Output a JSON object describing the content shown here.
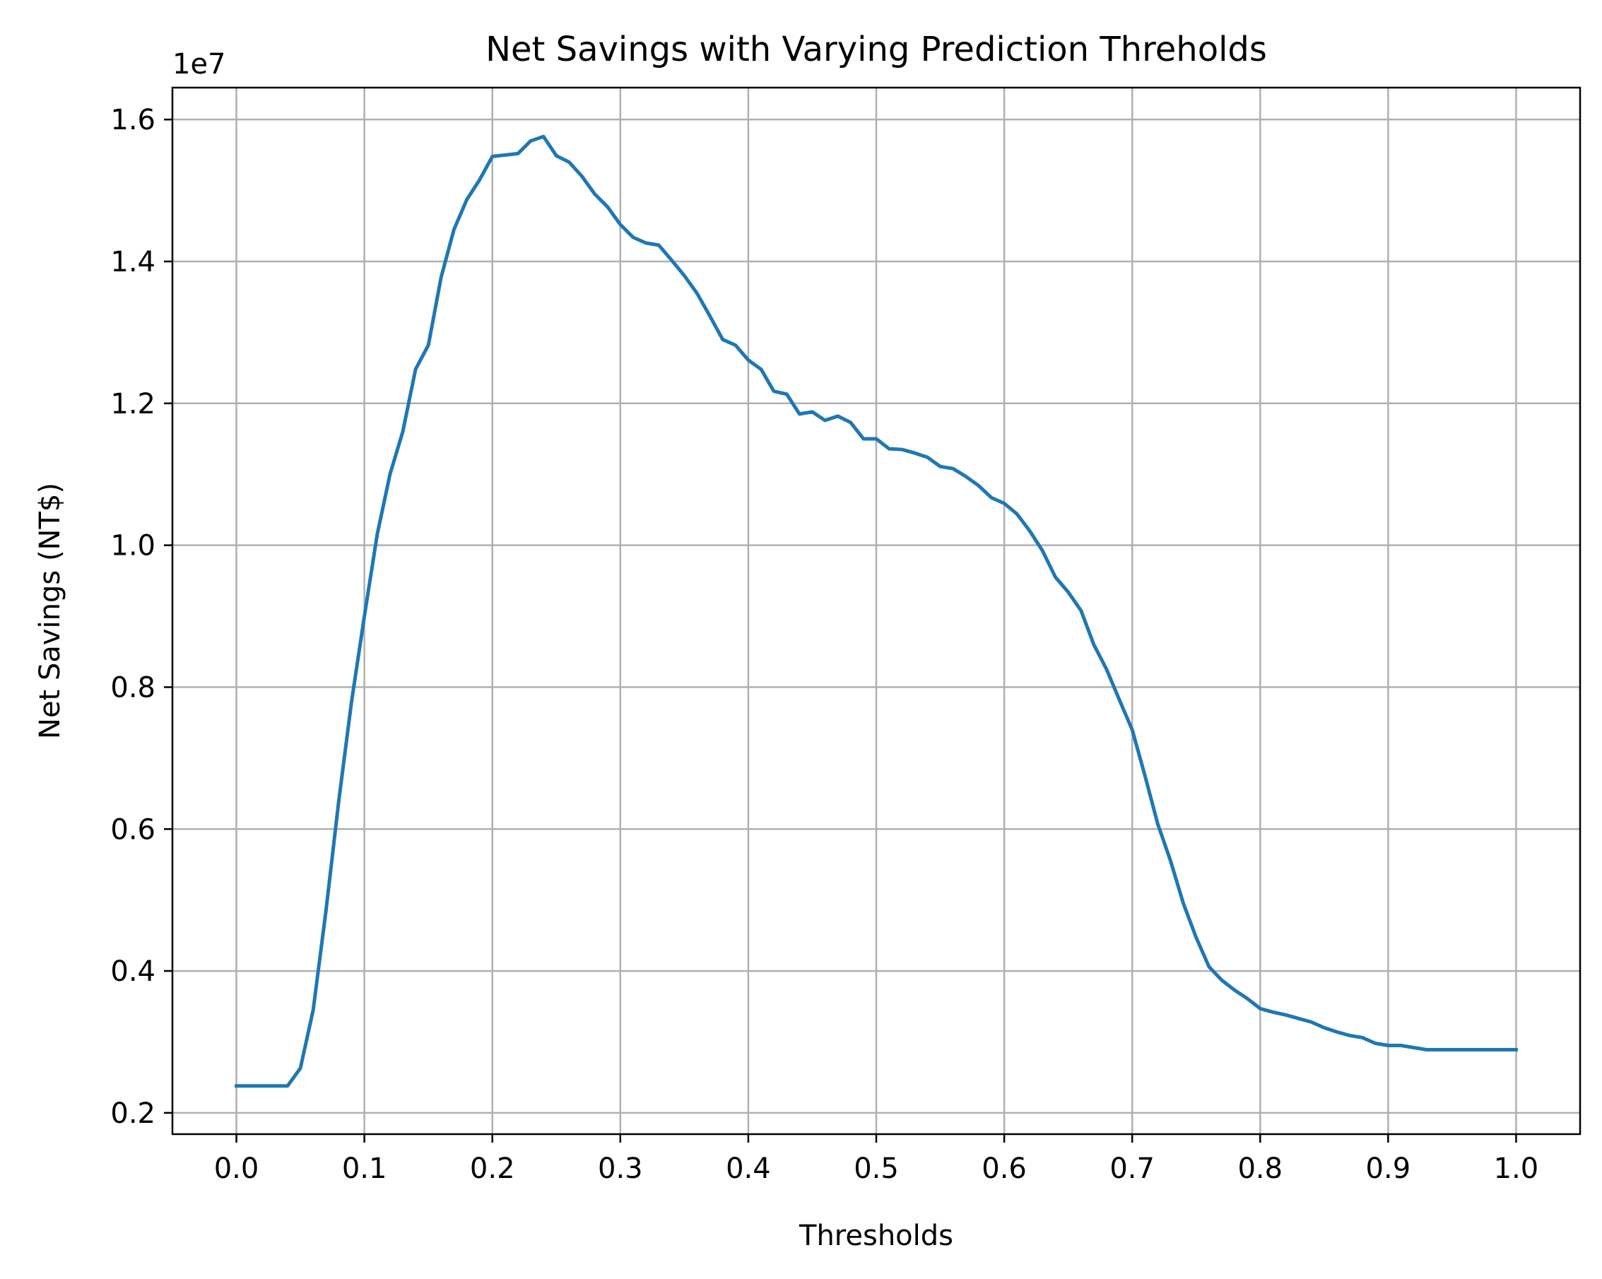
{
  "chart_data": {
    "type": "line",
    "title": "Net Savings with Varying Prediction Threholds",
    "xlabel": "Thresholds",
    "ylabel": "Net Savings (NT$)",
    "y_offset_label": "1e7",
    "xlim": [
      -0.05,
      1.05
    ],
    "ylim": [
      1.7,
      16.45
    ],
    "xticks": [
      0.0,
      0.1,
      0.2,
      0.3,
      0.4,
      0.5,
      0.6,
      0.7,
      0.8,
      0.9,
      1.0
    ],
    "xtick_labels": [
      "0.0",
      "0.1",
      "0.2",
      "0.3",
      "0.4",
      "0.5",
      "0.6",
      "0.7",
      "0.8",
      "0.9",
      "1.0"
    ],
    "yticks": [
      2,
      4,
      6,
      8,
      10,
      12,
      14,
      16
    ],
    "ytick_labels": [
      "0.2",
      "0.4",
      "0.6",
      "0.8",
      "1.0",
      "1.2",
      "1.4",
      "1.6"
    ],
    "grid": true,
    "series_color": "#1f77b4",
    "grid_color": "#b0b0b0",
    "series": [
      {
        "x": [
          0.0,
          0.01,
          0.02,
          0.03,
          0.04,
          0.05,
          0.06,
          0.07,
          0.08,
          0.09,
          0.1,
          0.11,
          0.12,
          0.13,
          0.14,
          0.15,
          0.16,
          0.17,
          0.18,
          0.19,
          0.2,
          0.21,
          0.22,
          0.23,
          0.24,
          0.25,
          0.26,
          0.27,
          0.28,
          0.29,
          0.3,
          0.31,
          0.32,
          0.33,
          0.34,
          0.35,
          0.36,
          0.37,
          0.38,
          0.39,
          0.4,
          0.41,
          0.42,
          0.43,
          0.44,
          0.45,
          0.46,
          0.47,
          0.48,
          0.49,
          0.5,
          0.51,
          0.52,
          0.53,
          0.54,
          0.55,
          0.56,
          0.57,
          0.58,
          0.59,
          0.6,
          0.61,
          0.62,
          0.63,
          0.64,
          0.65,
          0.66,
          0.67,
          0.68,
          0.69,
          0.7,
          0.71,
          0.72,
          0.73,
          0.74,
          0.75,
          0.76,
          0.77,
          0.78,
          0.79,
          0.8,
          0.81,
          0.82,
          0.83,
          0.84,
          0.85,
          0.86,
          0.87,
          0.88,
          0.89,
          0.9,
          0.91,
          0.92,
          0.93,
          0.94,
          0.95,
          0.96,
          0.97,
          0.98,
          0.99,
          1.0
        ],
        "y": [
          2.38,
          2.38,
          2.38,
          2.38,
          2.38,
          2.63,
          3.45,
          4.85,
          6.4,
          7.8,
          9.0,
          10.15,
          11.0,
          11.6,
          12.48,
          12.82,
          13.78,
          14.45,
          14.87,
          15.15,
          15.48,
          15.5,
          15.52,
          15.7,
          15.76,
          15.49,
          15.4,
          15.2,
          14.95,
          14.77,
          14.52,
          14.34,
          14.26,
          14.23,
          14.02,
          13.8,
          13.55,
          13.23,
          12.9,
          12.82,
          12.61,
          12.48,
          12.17,
          12.13,
          11.85,
          11.88,
          11.76,
          11.82,
          11.73,
          11.5,
          11.5,
          11.36,
          11.35,
          11.3,
          11.24,
          11.11,
          11.08,
          10.97,
          10.84,
          10.67,
          10.59,
          10.44,
          10.2,
          9.92,
          9.55,
          9.34,
          9.08,
          8.6,
          8.25,
          7.82,
          7.4,
          6.75,
          6.07,
          5.55,
          4.95,
          4.47,
          4.06,
          3.87,
          3.73,
          3.61,
          3.47,
          3.42,
          3.38,
          3.33,
          3.28,
          3.2,
          3.14,
          3.09,
          3.06,
          2.98,
          2.95,
          2.95,
          2.92,
          2.89,
          2.89,
          2.89,
          2.89,
          2.89,
          2.89,
          2.89,
          2.89
        ]
      }
    ]
  }
}
